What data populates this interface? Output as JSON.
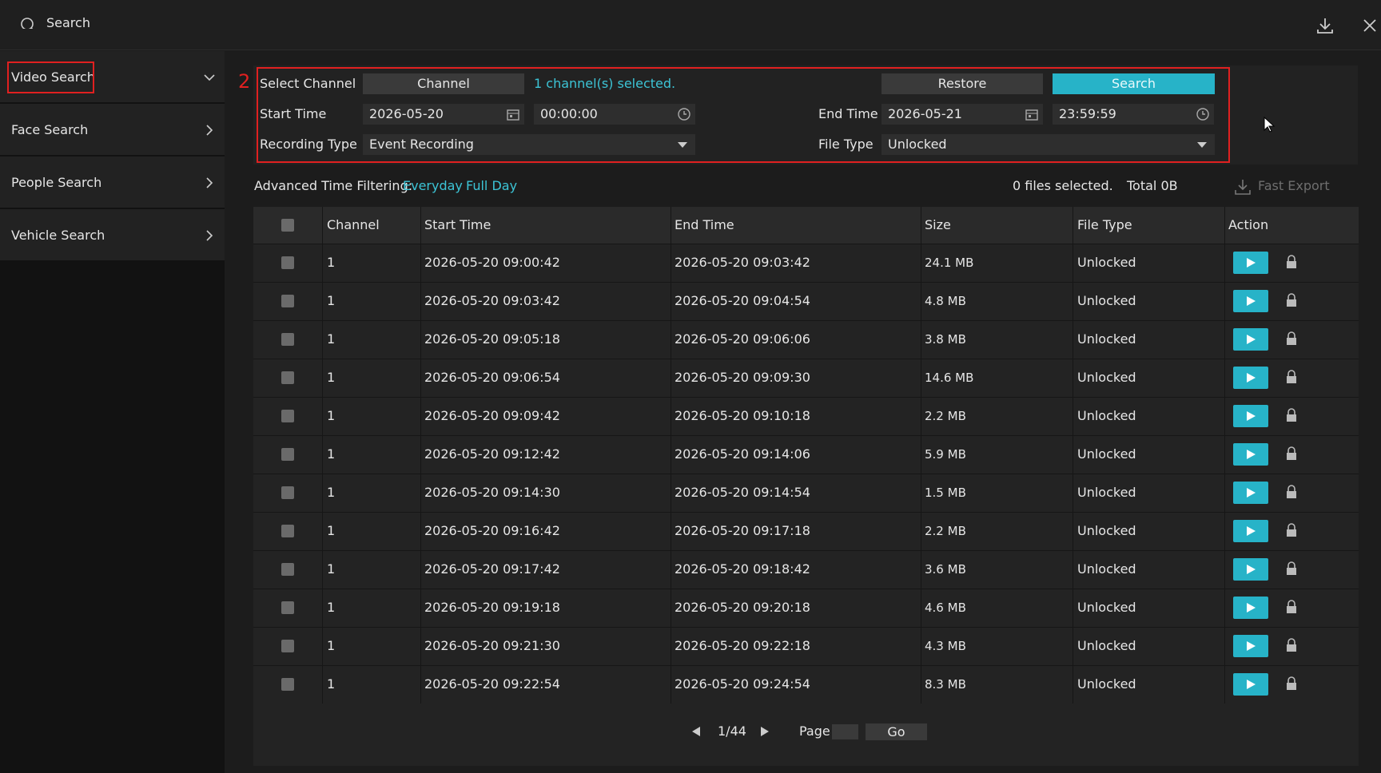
{
  "header": {
    "title": "Search"
  },
  "sidebar": {
    "items": [
      "Video Search",
      "Face Search",
      "People Search",
      "Vehicle Search"
    ]
  },
  "annotation": "2",
  "filters": {
    "select_channel_label": "Select Channel",
    "channel_button": "Channel",
    "channel_status": "1 channel(s) selected.",
    "restore": "Restore",
    "search": "Search",
    "start_time_label": "Start Time",
    "start_date": "2026-05-20",
    "start_clock": "00:00:00",
    "end_time_label": "End Time",
    "end_date": "2026-05-21",
    "end_clock": "23:59:59",
    "recording_type_label": "Recording Type",
    "recording_type": "Event Recording",
    "file_type_label": "File Type",
    "file_type": "Unlocked"
  },
  "advanced": {
    "label": "Advanced Time Filtering:",
    "everyday": "Everyday",
    "full_day": "Full Day"
  },
  "selection": {
    "files": "0 files selected.",
    "total": "Total 0B"
  },
  "fast_export": "Fast Export",
  "table": {
    "columns": [
      "Channel",
      "Start Time",
      "End Time",
      "Size",
      "File Type",
      "Action"
    ],
    "rows": [
      [
        "1",
        "2026-05-20 09:00:42",
        "2026-05-20 09:03:42",
        "24.1 MB",
        "Unlocked"
      ],
      [
        "1",
        "2026-05-20 09:03:42",
        "2026-05-20 09:04:54",
        "4.8 MB",
        "Unlocked"
      ],
      [
        "1",
        "2026-05-20 09:05:18",
        "2026-05-20 09:06:06",
        "3.8 MB",
        "Unlocked"
      ],
      [
        "1",
        "2026-05-20 09:06:54",
        "2026-05-20 09:09:30",
        "14.6 MB",
        "Unlocked"
      ],
      [
        "1",
        "2026-05-20 09:09:42",
        "2026-05-20 09:10:18",
        "2.2 MB",
        "Unlocked"
      ],
      [
        "1",
        "2026-05-20 09:12:42",
        "2026-05-20 09:14:06",
        "5.9 MB",
        "Unlocked"
      ],
      [
        "1",
        "2026-05-20 09:14:30",
        "2026-05-20 09:14:54",
        "1.5 MB",
        "Unlocked"
      ],
      [
        "1",
        "2026-05-20 09:16:42",
        "2026-05-20 09:17:18",
        "2.2 MB",
        "Unlocked"
      ],
      [
        "1",
        "2026-05-20 09:17:42",
        "2026-05-20 09:18:42",
        "3.6 MB",
        "Unlocked"
      ],
      [
        "1",
        "2026-05-20 09:19:18",
        "2026-05-20 09:20:18",
        "4.6 MB",
        "Unlocked"
      ],
      [
        "1",
        "2026-05-20 09:21:30",
        "2026-05-20 09:22:18",
        "4.3 MB",
        "Unlocked"
      ],
      [
        "1",
        "2026-05-20 09:22:54",
        "2026-05-20 09:24:54",
        "8.3 MB",
        "Unlocked"
      ]
    ]
  },
  "pagination": {
    "status": "1/44",
    "page_label": "Page",
    "go": "Go"
  }
}
